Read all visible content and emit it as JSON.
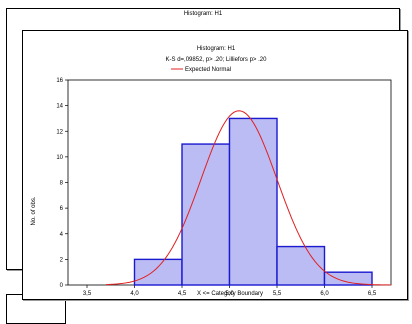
{
  "windows": [
    {
      "title": "Histogram: H1"
    }
  ],
  "chart_data": {
    "type": "bar",
    "title": "Histogram: H1",
    "subtitle": "K-S d=,09852, p> .20; Lilliefors p> .20",
    "legend": "Expected Normal",
    "xlabel": "X <= Category Boundary",
    "ylabel": "No. of obs.",
    "xlim": [
      3.3,
      6.7
    ],
    "ylim": [
      0,
      16
    ],
    "x_ticks": [
      "3,5",
      "4,0",
      "4,5",
      "5,0",
      "5,5",
      "6,0",
      "6,5"
    ],
    "y_ticks": [
      "0",
      "2",
      "4",
      "6",
      "8",
      "10",
      "12",
      "14",
      "16"
    ],
    "bins": [
      {
        "from": 4.0,
        "to": 4.5,
        "count": 2
      },
      {
        "from": 4.5,
        "to": 5.0,
        "count": 11
      },
      {
        "from": 5.0,
        "to": 5.5,
        "count": 13
      },
      {
        "from": 5.5,
        "to": 6.0,
        "count": 3
      },
      {
        "from": 6.0,
        "to": 6.5,
        "count": 1
      }
    ],
    "normal_curve": {
      "mean": 5.1,
      "sd": 0.4,
      "peak": 13.6
    },
    "colors": {
      "bar_fill": "#bcbcf4",
      "bar_stroke": "#1a1ad0",
      "curve": "#e02020"
    }
  }
}
